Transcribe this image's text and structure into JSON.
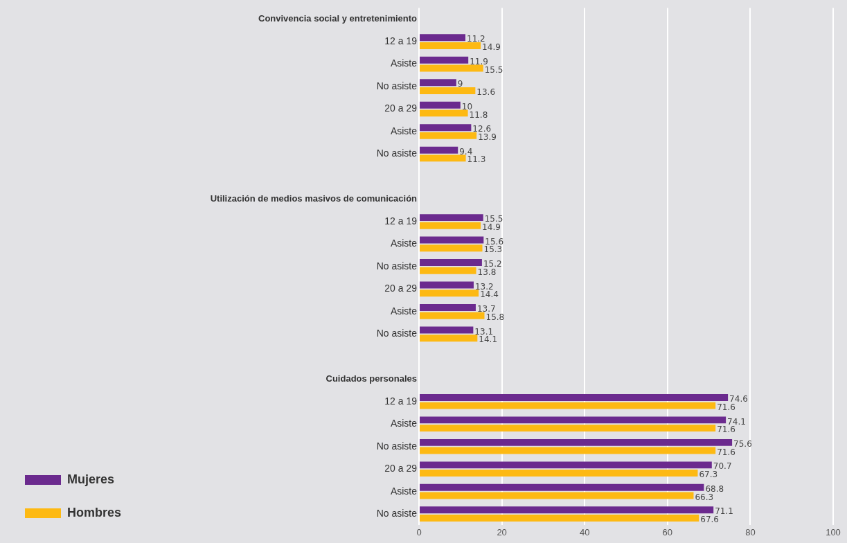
{
  "chart_data": {
    "type": "bar",
    "orientation": "horizontal",
    "categories": [
      "Convivencia social y entretenimiento",
      "12 a 19",
      "Asiste",
      "No asiste",
      "20 a 29",
      "Asiste",
      "No asiste",
      null,
      "Utilización de medios masivos de comunicación",
      "12 a 19",
      "Asiste",
      "No asiste",
      "20 a 29",
      "Asiste",
      "No asiste",
      null,
      "Cuidados personales",
      "12 a 19",
      "Asiste",
      "No asiste",
      "20 a 29",
      "Asiste",
      "No asiste"
    ],
    "series": [
      {
        "name": "Mujeres",
        "color": "#6b2a8e",
        "values": [
          null,
          11.2,
          11.9,
          9,
          10,
          12.6,
          9.4,
          null,
          null,
          15.5,
          15.6,
          15.2,
          13.2,
          13.7,
          13.1,
          null,
          null,
          74.6,
          74.1,
          75.6,
          70.7,
          68.8,
          71.1
        ]
      },
      {
        "name": "Hombres",
        "color": "#fdb913",
        "values": [
          null,
          14.9,
          15.5,
          13.6,
          11.8,
          13.9,
          11.3,
          null,
          null,
          14.9,
          15.3,
          13.8,
          14.4,
          15.8,
          14.1,
          null,
          null,
          71.6,
          71.6,
          71.6,
          67.3,
          66.3,
          67.6
        ]
      }
    ],
    "xlim": [
      0,
      100
    ],
    "xticks": [
      0,
      20,
      40,
      60,
      80,
      100
    ],
    "grid": "x",
    "legend": "bottom left",
    "data_labels": true
  }
}
